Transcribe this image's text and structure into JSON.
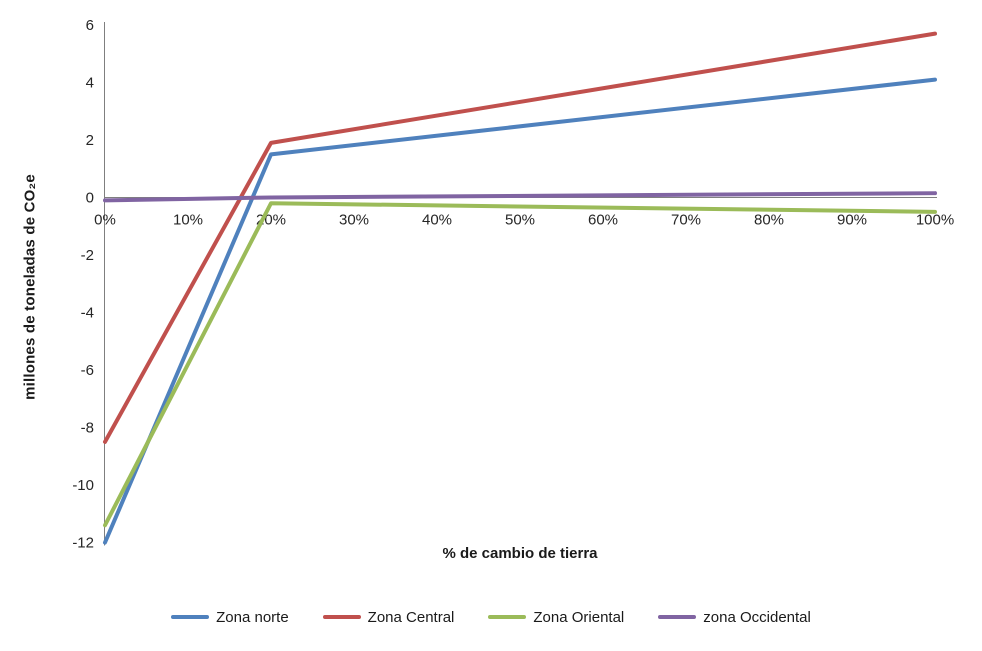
{
  "chart_data": {
    "type": "line",
    "title": "",
    "xlabel": "% de cambio de tierra",
    "ylabel": "millones de toneladas de CO₂e",
    "xlim": [
      0,
      100
    ],
    "ylim": [
      -12,
      6
    ],
    "x_tick_labels": [
      "0%",
      "10%",
      "20%",
      "30%",
      "40%",
      "50%",
      "60%",
      "70%",
      "80%",
      "90%",
      "100%"
    ],
    "x_tick_values": [
      0,
      10,
      20,
      30,
      40,
      50,
      60,
      70,
      80,
      90,
      100
    ],
    "y_tick_values": [
      6,
      4,
      2,
      0,
      -2,
      -4,
      -6,
      -8,
      -10,
      -12
    ],
    "grid": false,
    "legend_position": "bottom",
    "axis_color": "#7f7f7f",
    "text_color": "#262626",
    "series": [
      {
        "name": "Zona norte",
        "color": "#4F81BD",
        "x": [
          0,
          20,
          100
        ],
        "y": [
          -12.0,
          1.5,
          4.1
        ]
      },
      {
        "name": "Zona Central",
        "color": "#C0504D",
        "x": [
          0,
          20,
          100
        ],
        "y": [
          -8.5,
          1.9,
          5.7
        ]
      },
      {
        "name": "Zona Oriental",
        "color": "#9BBB59",
        "x": [
          0,
          20,
          100
        ],
        "y": [
          -11.4,
          -0.2,
          -0.5
        ]
      },
      {
        "name": "zona Occidental",
        "color": "#8064A2",
        "x": [
          0,
          20,
          100
        ],
        "y": [
          -0.1,
          0.0,
          0.15
        ]
      }
    ]
  }
}
